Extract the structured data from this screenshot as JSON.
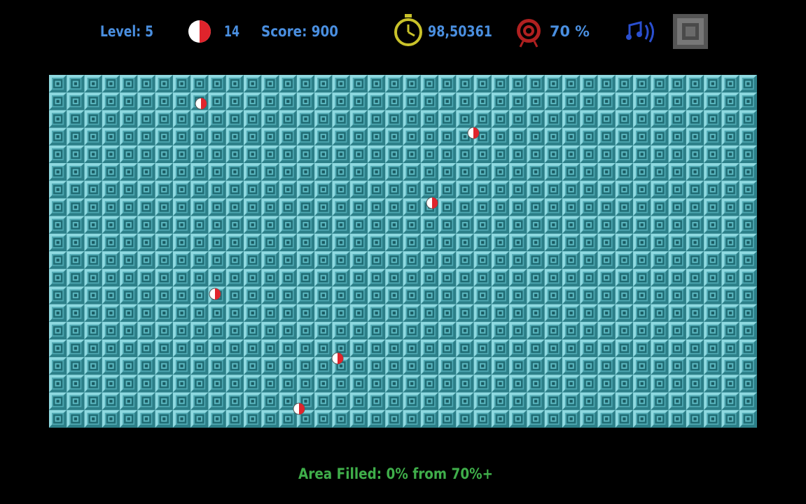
{
  "hud": {
    "level": "Level: 5",
    "lives": "14",
    "score": "Score: 900",
    "time": "98,50361",
    "target": "70 %"
  },
  "footer": {
    "status": "Area Filled: 0% from 70%+"
  }
}
